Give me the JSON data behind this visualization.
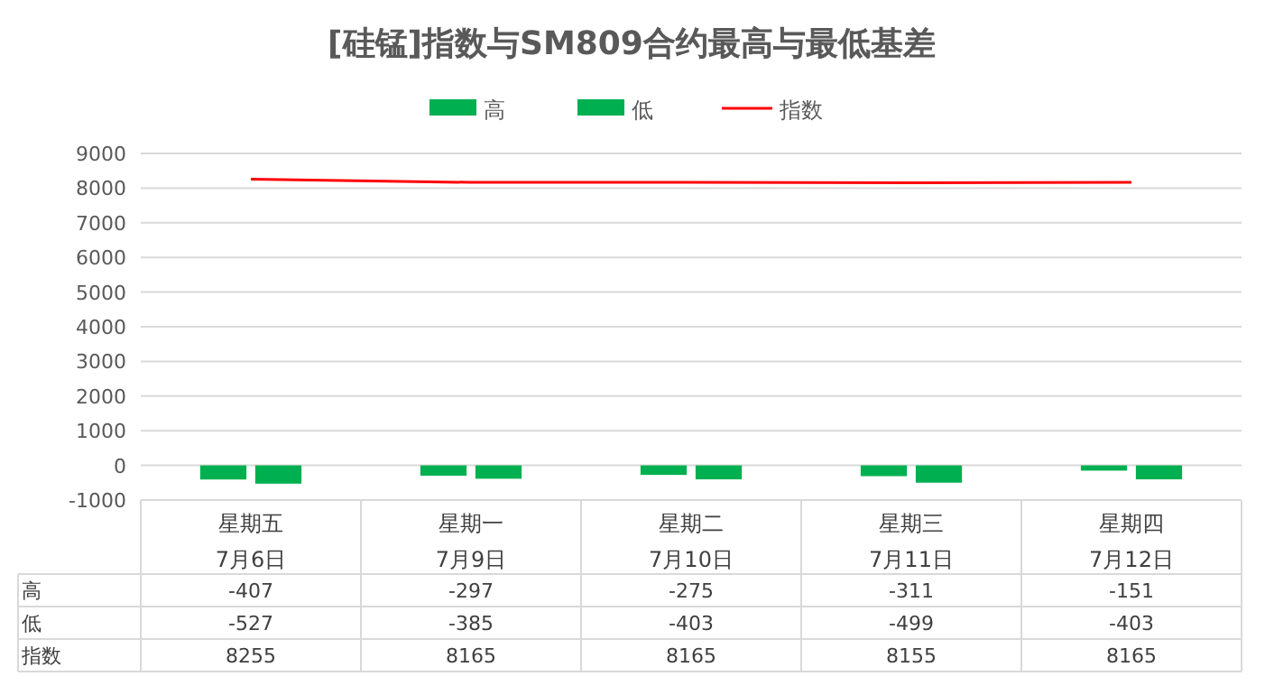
{
  "chart_data": {
    "type": "bar",
    "title": "[硅锰]指数与SM809合约最高与最低基差",
    "categories": [
      "星期五\n7月6日",
      "星期一\n7月9日",
      "星期二\n7月10日",
      "星期三\n7月11日",
      "星期四\n7月12日"
    ],
    "series": [
      {
        "name": "高",
        "color": "#00b050",
        "values": [
          -407,
          -297,
          -275,
          -311,
          -151
        ]
      },
      {
        "name": "低",
        "color": "#00b050",
        "values": [
          -527,
          -385,
          -403,
          -499,
          -403
        ]
      },
      {
        "name": "指数",
        "type": "line",
        "color": "#ff0000",
        "values": [
          8255,
          8165,
          8165,
          8155,
          8165
        ]
      }
    ],
    "ylim": [
      -1000,
      9000
    ],
    "yticks": [
      -1000,
      0,
      1000,
      2000,
      3000,
      4000,
      5000,
      6000,
      7000,
      8000,
      9000
    ],
    "grid": "y",
    "legend": "top",
    "data_labels": true
  }
}
